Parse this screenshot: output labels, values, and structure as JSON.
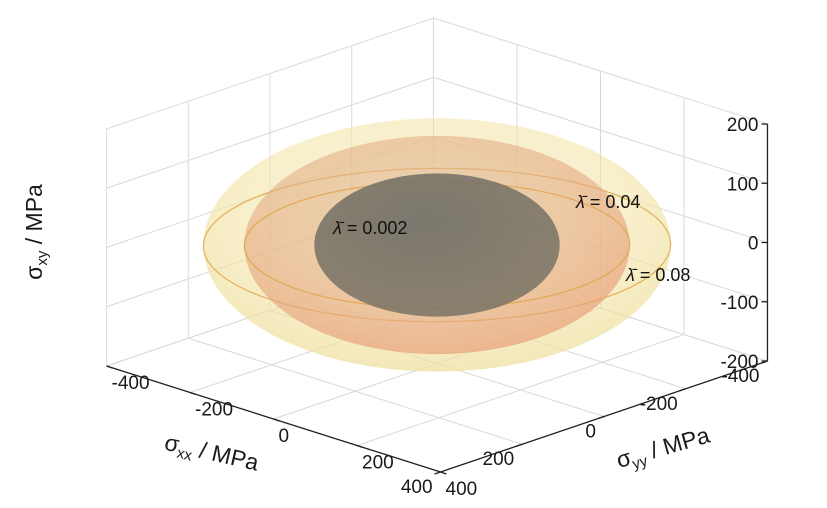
{
  "chart_data": {
    "type": "surface3d",
    "title": "",
    "axes": {
      "x": {
        "label_symbol": "σ",
        "label_sub": "xx",
        "label_unit": " / MPa",
        "range": [
          -400,
          400
        ],
        "ticks": [
          -400,
          -200,
          0,
          200,
          400
        ]
      },
      "y": {
        "label_symbol": "σ",
        "label_sub": "yy",
        "label_unit": " / MPa",
        "range": [
          -400,
          400
        ],
        "ticks": [
          -400,
          -200,
          0,
          200,
          400
        ]
      },
      "z": {
        "label_symbol": "σ",
        "label_sub": "xy",
        "label_unit": " / MPa",
        "range": [
          -200,
          200
        ],
        "ticks": [
          -200,
          -100,
          0,
          100,
          200
        ]
      }
    },
    "grid": true,
    "series": [
      {
        "label_symbol": "λ̄",
        "label_value": " = 0.002",
        "semi_axes": [
          210,
          210,
          100
        ],
        "color": "#6e6a62",
        "opacity": 0.85
      },
      {
        "label_symbol": "λ̄",
        "label_value": " = 0.04",
        "semi_axes": [
          330,
          330,
          150
        ],
        "color": "#e8b27a",
        "opacity": 0.55
      },
      {
        "label_symbol": "λ̄",
        "label_value": " = 0.08",
        "semi_axes": [
          400,
          400,
          170
        ],
        "color": "#f3e3a6",
        "opacity": 0.5
      }
    ]
  }
}
